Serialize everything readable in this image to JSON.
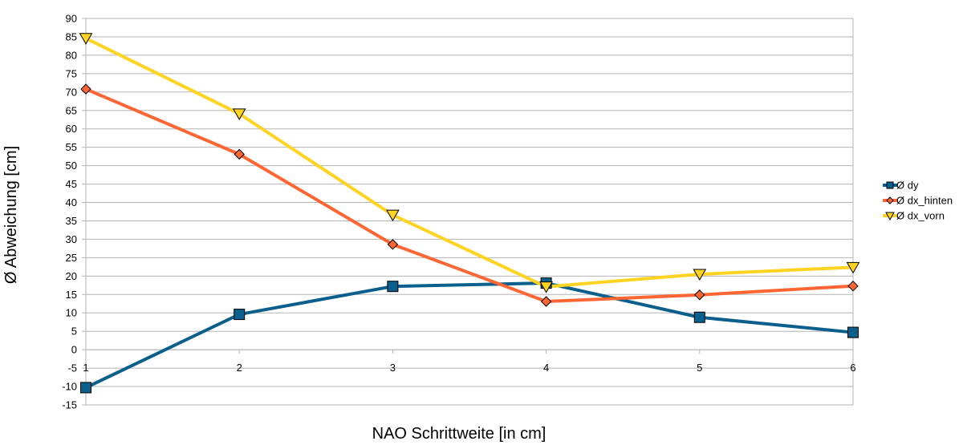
{
  "chart_data": {
    "type": "line",
    "title": "",
    "xlabel": "NAO Schrittweite [in cm]",
    "ylabel": "Ø Abweichung [cm]",
    "x": [
      1,
      2,
      3,
      4,
      5,
      6
    ],
    "xticks": [
      "1",
      "2",
      "3",
      "4",
      "5",
      "6"
    ],
    "xlim": [
      1,
      6
    ],
    "ylim": [
      -15,
      90
    ],
    "ystep": 5,
    "grid": true,
    "legend_position": "right",
    "series": [
      {
        "name": "Ø dy",
        "color": "#0a5f8c",
        "marker": "square",
        "values": [
          -10.3,
          9.6,
          17.2,
          18.1,
          8.8,
          4.7
        ]
      },
      {
        "name": "Ø dx_hinten",
        "color": "#ff6633",
        "marker": "diamond",
        "values": [
          70.8,
          53.1,
          28.6,
          13.1,
          14.9,
          17.3
        ]
      },
      {
        "name": "Ø dx_vorn",
        "color": "#ffd320",
        "marker": "triangle-down",
        "values": [
          84.6,
          64.1,
          36.6,
          17.1,
          20.5,
          22.4
        ]
      }
    ]
  }
}
